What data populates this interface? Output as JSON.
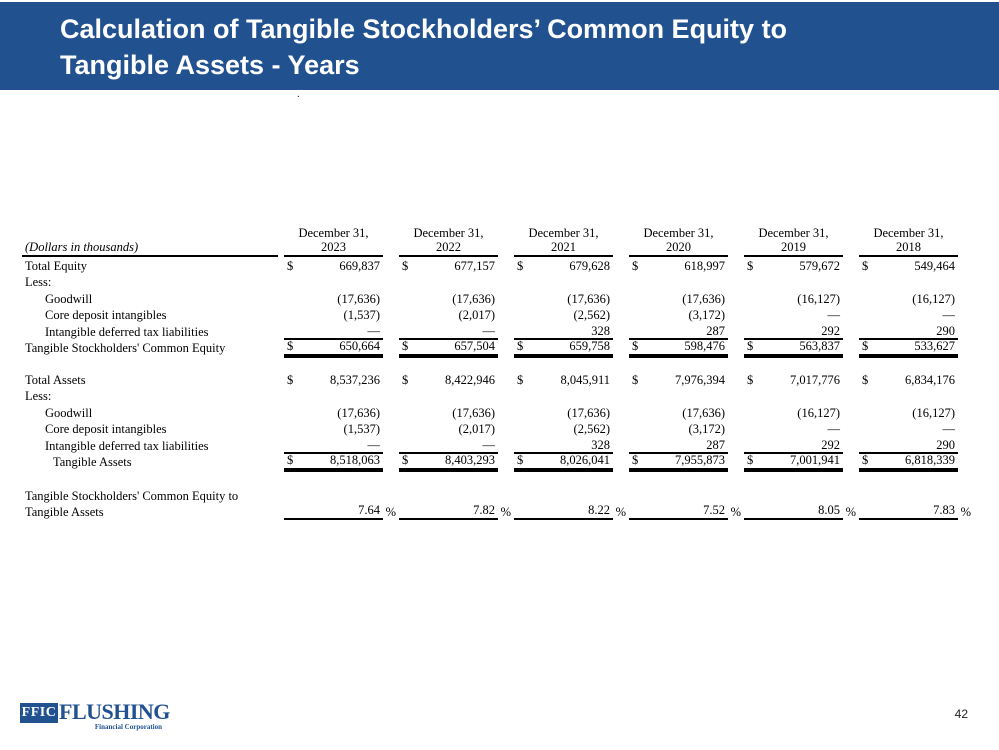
{
  "slide": {
    "title_line1": "Calculation of Tangible Stockholders’ Common Equity to",
    "title_line2": "Tangible Assets - Years",
    "stray_dot": ".",
    "page_number": "42"
  },
  "logo": {
    "abbr": "FFIC",
    "name": "FLUSHING",
    "subtitle": "Financial Corporation"
  },
  "colors": {
    "header_bg": "#21518f",
    "logo_blue": "#21518f",
    "title_text": "#ffffff",
    "table_text": "#000000"
  },
  "table": {
    "unit_note": "(Dollars in thousands)",
    "col_header_top": "December 31,",
    "years": [
      "2023",
      "2022",
      "2021",
      "2020",
      "2019",
      "2018"
    ],
    "dollar_sign": "$",
    "percent_sign": "%",
    "rows": [
      {
        "label": "Total Equity",
        "indent": 0,
        "dollar": true,
        "values": [
          "669,837",
          "677,157",
          "679,628",
          "618,997",
          "579,672",
          "549,464"
        ]
      },
      {
        "label": "Less:",
        "indent": 0
      },
      {
        "label": "Goodwill",
        "indent": 1,
        "values": [
          "(17,636)",
          "(17,636)",
          "(17,636)",
          "(17,636)",
          "(16,127)",
          "(16,127)"
        ]
      },
      {
        "label": "Core deposit intangibles",
        "indent": 1,
        "values": [
          "(1,537)",
          "(2,017)",
          "(2,562)",
          "(3,172)",
          "—",
          "—"
        ]
      },
      {
        "label": "Intangible deferred tax liabilities",
        "indent": 1,
        "style": "underline",
        "values": [
          "—",
          "—",
          "328",
          "287",
          "292",
          "290"
        ]
      },
      {
        "label": "Tangible Stockholders' Common Equity",
        "indent": 0,
        "dollar": true,
        "style": "total",
        "values": [
          "650,664",
          "657,504",
          "659,758",
          "598,476",
          "563,837",
          "533,627"
        ]
      },
      {
        "spacer": 15
      },
      {
        "label": "Total Assets",
        "indent": 0,
        "dollar": true,
        "values": [
          "8,537,236",
          "8,422,946",
          "8,045,911",
          "7,976,394",
          "7,017,776",
          "6,834,176"
        ]
      },
      {
        "label": "Less:",
        "indent": 0
      },
      {
        "label": "Goodwill",
        "indent": 1,
        "values": [
          "(17,636)",
          "(17,636)",
          "(17,636)",
          "(17,636)",
          "(16,127)",
          "(16,127)"
        ]
      },
      {
        "label": "Core deposit intangibles",
        "indent": 1,
        "values": [
          "(1,537)",
          "(2,017)",
          "(2,562)",
          "(3,172)",
          "—",
          "—"
        ]
      },
      {
        "label": "Intangible deferred tax liabilities",
        "indent": 1,
        "style": "underline",
        "values": [
          "—",
          "—",
          "328",
          "287",
          "292",
          "290"
        ]
      },
      {
        "label": "Tangible Assets",
        "indent": 2,
        "dollar": true,
        "style": "total",
        "values": [
          "8,518,063",
          "8,403,293",
          "8,026,041",
          "7,955,873",
          "7,001,941",
          "6,818,339"
        ]
      },
      {
        "spacer": 17
      },
      {
        "label": "Tangible Stockholders' Common Equity to",
        "indent": 0
      },
      {
        "label": "Tangible Assets",
        "indent": 0,
        "style": "percent",
        "values": [
          "7.64",
          "7.82",
          "8.22",
          "7.52",
          "8.05",
          "7.83"
        ]
      }
    ]
  }
}
